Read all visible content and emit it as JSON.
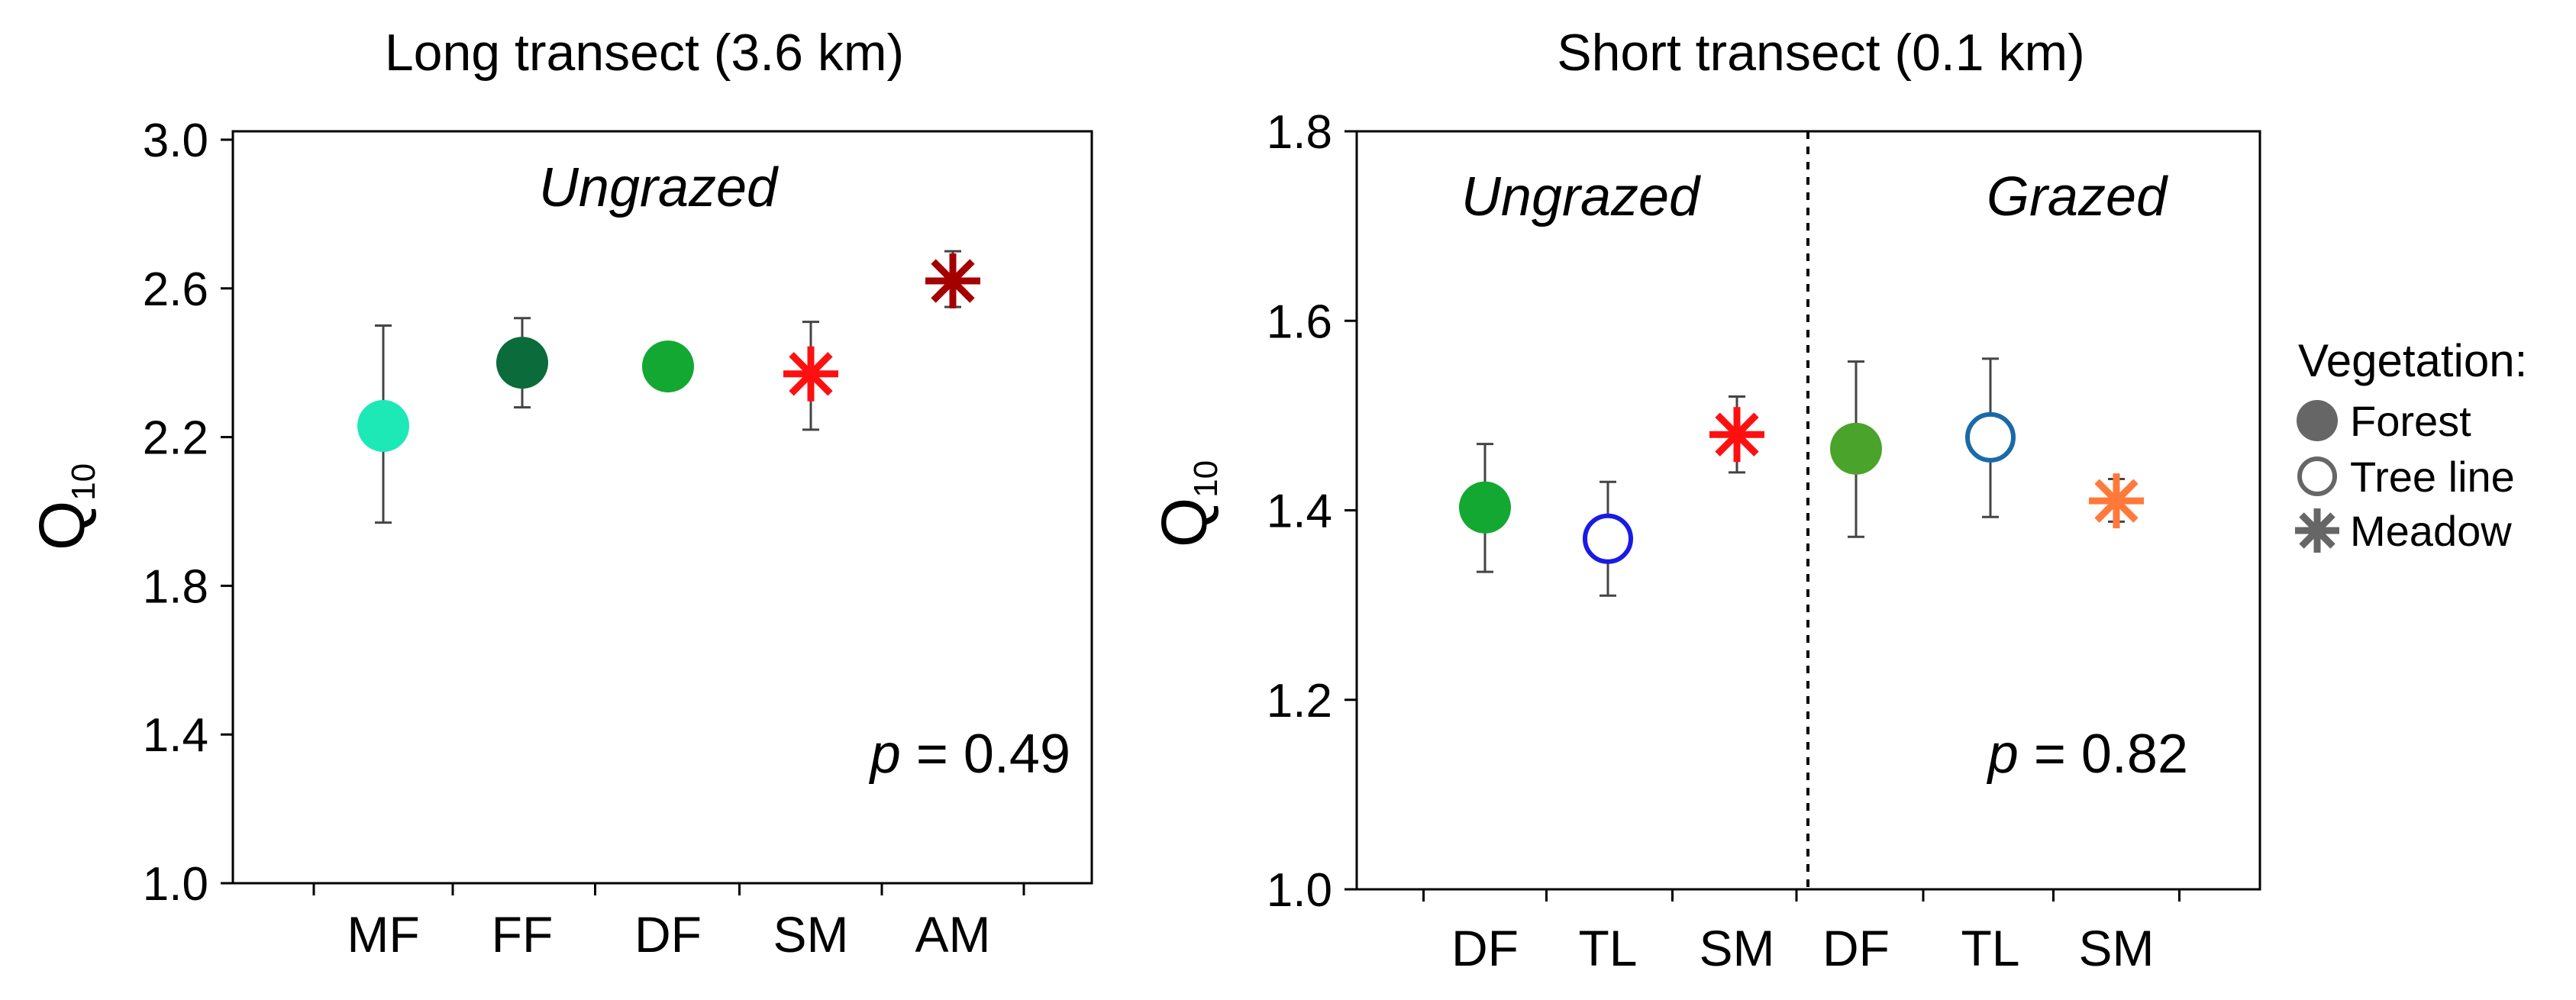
{
  "chart_data": [
    {
      "type": "scatter",
      "title": "Long  transect (3.6 km)",
      "ylabel": "Q",
      "ylabel_subscript": "10",
      "ylim": [
        1.0,
        3.0
      ],
      "yticks": [
        "1.0",
        "1.4",
        "1.8",
        "2.2",
        "2.6",
        "3.0"
      ],
      "categories": [
        "MF",
        "FF",
        "DF",
        "SM",
        "AM"
      ],
      "groups": [
        {
          "label": "Ungrazed"
        }
      ],
      "annotation_prefix": "p",
      "annotation_value": " = 0.49",
      "points": [
        {
          "category": "MF",
          "value": 2.23,
          "err_low": 1.97,
          "err_high": 2.5,
          "marker": "filled-circle",
          "color": "#1de9b6"
        },
        {
          "category": "FF",
          "value": 2.4,
          "err_low": 2.28,
          "err_high": 2.52,
          "marker": "filled-circle",
          "color": "#0b6b3a"
        },
        {
          "category": "DF",
          "value": 2.39,
          "err_low": 2.39,
          "err_high": 2.39,
          "marker": "filled-circle",
          "color": "#12a832"
        },
        {
          "category": "SM",
          "value": 2.37,
          "err_low": 2.22,
          "err_high": 2.51,
          "marker": "asterisk",
          "color": "#ff1010"
        },
        {
          "category": "AM",
          "value": 2.62,
          "err_low": 2.55,
          "err_high": 2.7,
          "marker": "asterisk",
          "color": "#a50000"
        }
      ]
    },
    {
      "type": "scatter",
      "title": "Short  transect (0.1 km)",
      "ylabel": "Q",
      "ylabel_subscript": "10",
      "ylim": [
        1.0,
        1.8
      ],
      "yticks": [
        "1.0",
        "1.2",
        "1.4",
        "1.6",
        "1.8"
      ],
      "categories": [
        "DF",
        "TL",
        "SM",
        "DF",
        "TL",
        "SM"
      ],
      "groups": [
        {
          "label": "Ungrazed"
        },
        {
          "label": "Grazed"
        }
      ],
      "annotation_prefix": "p",
      "annotation_value": " = 0.82",
      "points": [
        {
          "category": "DF",
          "value": 1.403,
          "err_low": 1.335,
          "err_high": 1.47,
          "marker": "filled-circle",
          "color": "#12a832"
        },
        {
          "category": "TL",
          "value": 1.37,
          "err_low": 1.31,
          "err_high": 1.43,
          "marker": "open-circle",
          "color": "#1a1ae6"
        },
        {
          "category": "SM",
          "value": 1.48,
          "err_low": 1.44,
          "err_high": 1.52,
          "marker": "asterisk",
          "color": "#ff1010"
        },
        {
          "category": "DF",
          "value": 1.465,
          "err_low": 1.372,
          "err_high": 1.557,
          "marker": "filled-circle",
          "color": "#4aa32a"
        },
        {
          "category": "TL",
          "value": 1.477,
          "err_low": 1.393,
          "err_high": 1.56,
          "marker": "open-circle",
          "color": "#1a6aa8"
        },
        {
          "category": "SM",
          "value": 1.41,
          "err_low": 1.388,
          "err_high": 1.433,
          "marker": "asterisk",
          "color": "#ff7a3a"
        }
      ]
    }
  ],
  "legend": {
    "title": "Vegetation:",
    "items": [
      {
        "label": "Forest",
        "marker": "filled-circle",
        "color": "#666666"
      },
      {
        "label": "Tree line",
        "marker": "open-circle",
        "color": "#666666"
      },
      {
        "label": "Meadow",
        "marker": "asterisk",
        "color": "#666666"
      }
    ]
  }
}
